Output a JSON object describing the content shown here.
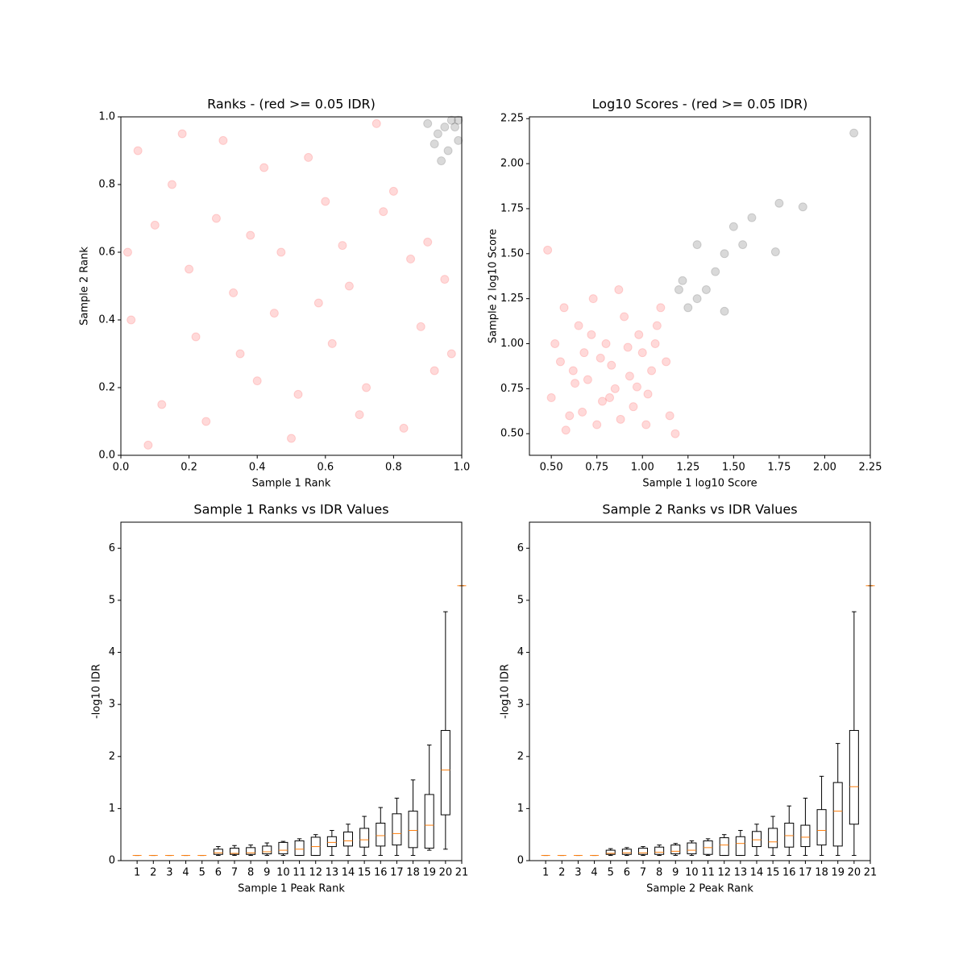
{
  "chart_data": [
    {
      "type": "scatter",
      "title": "Ranks - (red >= 0.05 IDR)",
      "x_label": "Sample 1 Rank",
      "y_label": "Sample 2 Rank",
      "xlim": [
        0,
        1
      ],
      "ylim": [
        0,
        1
      ],
      "xticks": [
        {
          "value": 0,
          "label": "0.0"
        },
        0.2,
        0.4,
        0.6,
        0.8,
        {
          "value": 1,
          "label": "1.0"
        }
      ],
      "yticks": [
        {
          "value": 0,
          "label": "0.0"
        },
        0.2,
        0.4,
        0.6,
        0.8,
        {
          "value": 1,
          "label": "1.0"
        }
      ],
      "alpha": 0.15,
      "series": [
        {
          "color": "#ff0000",
          "x": [
            0.05,
            0.12,
            0.2,
            0.28,
            0.35,
            0.42,
            0.5,
            0.58,
            0.65,
            0.72,
            0.8,
            0.88,
            0.95,
            0.03,
            0.1,
            0.18,
            0.25,
            0.33,
            0.4,
            0.47,
            0.55,
            0.62,
            0.7,
            0.77,
            0.85,
            0.92,
            0.08,
            0.15,
            0.22,
            0.3,
            0.38,
            0.45,
            0.52,
            0.6,
            0.67,
            0.75,
            0.83,
            0.9,
            0.97,
            0.02
          ],
          "y": [
            0.9,
            0.15,
            0.55,
            0.7,
            0.3,
            0.85,
            0.05,
            0.45,
            0.62,
            0.2,
            0.78,
            0.38,
            0.52,
            0.4,
            0.68,
            0.95,
            0.1,
            0.48,
            0.22,
            0.6,
            0.88,
            0.33,
            0.12,
            0.72,
            0.58,
            0.25,
            0.03,
            0.8,
            0.35,
            0.93,
            0.65,
            0.42,
            0.18,
            0.75,
            0.5,
            0.98,
            0.08,
            0.63,
            0.3,
            0.6
          ]
        },
        {
          "color": "#000000",
          "x": [
            0.95,
            0.97,
            0.93,
            0.99,
            0.9,
            0.96,
            0.98,
            0.92,
            0.99,
            0.94
          ],
          "y": [
            0.97,
            0.99,
            0.95,
            0.93,
            0.98,
            0.9,
            0.97,
            0.92,
            0.99,
            0.87
          ]
        }
      ]
    },
    {
      "type": "scatter",
      "title": "Log10 Scores - (red >= 0.05 IDR)",
      "x_label": "Sample 1 log10 Score",
      "y_label": "Sample 2 log10 Score",
      "xlim": [
        0.38,
        2.25
      ],
      "ylim": [
        0.38,
        2.26
      ],
      "xticks": [
        {
          "value": 0.5,
          "label": "0.50"
        },
        0.75,
        {
          "value": 1,
          "label": "1.00"
        },
        1.25,
        {
          "value": 1.5,
          "label": "1.50"
        },
        1.75,
        {
          "value": 2,
          "label": "2.00"
        },
        2.25
      ],
      "yticks": [
        {
          "value": 0.5,
          "label": "0.50"
        },
        0.75,
        {
          "value": 1,
          "label": "1.00"
        },
        1.25,
        {
          "value": 1.5,
          "label": "1.50"
        },
        1.75,
        {
          "value": 2,
          "label": "2.00"
        },
        2.25
      ],
      "alpha": 0.15,
      "series": [
        {
          "color": "#ff0000",
          "x": [
            0.5,
            0.55,
            0.6,
            0.65,
            0.7,
            0.75,
            0.8,
            0.85,
            0.9,
            0.95,
            1.0,
            1.05,
            1.1,
            1.15,
            0.52,
            0.58,
            0.63,
            0.68,
            0.73,
            0.78,
            0.83,
            0.88,
            0.93,
            0.98,
            1.03,
            1.08,
            1.13,
            1.18,
            0.57,
            0.67,
            0.77,
            0.87,
            0.97,
            1.07,
            0.62,
            0.72,
            0.82,
            0.92,
            1.02,
            0.48
          ],
          "y": [
            0.7,
            0.9,
            0.6,
            1.1,
            0.8,
            0.55,
            1.0,
            0.75,
            1.15,
            0.65,
            0.95,
            0.85,
            1.2,
            0.6,
            1.0,
            0.52,
            0.78,
            0.95,
            1.25,
            0.68,
            0.88,
            0.58,
            0.82,
            1.05,
            0.72,
            1.1,
            0.9,
            0.5,
            1.2,
            0.62,
            0.92,
            1.3,
            0.76,
            1.0,
            0.85,
            1.05,
            0.7,
            0.98,
            0.55,
            1.52
          ]
        },
        {
          "color": "#000000",
          "x": [
            1.2,
            1.25,
            1.3,
            1.35,
            1.4,
            1.5,
            1.75,
            1.88,
            2.16,
            1.3,
            1.45,
            1.6,
            1.73,
            1.55,
            1.45,
            1.22
          ],
          "y": [
            1.3,
            1.2,
            1.25,
            1.3,
            1.4,
            1.65,
            1.78,
            1.76,
            2.17,
            1.55,
            1.5,
            1.7,
            1.51,
            1.55,
            1.18,
            1.35
          ]
        }
      ]
    },
    {
      "type": "box",
      "title": "Sample 1 Ranks vs IDR Values",
      "x_label": "Sample 1 Peak Rank",
      "y_label": "-log10 IDR",
      "xlim": [
        0,
        21
      ],
      "ylim": [
        0,
        6.5
      ],
      "xticks": [
        1,
        2,
        3,
        4,
        5,
        6,
        7,
        8,
        9,
        10,
        11,
        12,
        13,
        14,
        15,
        16,
        17,
        18,
        19,
        20,
        21
      ],
      "yticks": [
        0,
        1,
        2,
        3,
        4,
        5,
        6
      ],
      "box_color": "#000000",
      "median_color": "#ff7f0e",
      "x": [
        1,
        2,
        3,
        4,
        5,
        6,
        7,
        8,
        9,
        10,
        11,
        12,
        13,
        14,
        15,
        16,
        17,
        18,
        19,
        20,
        21
      ],
      "whislo": [
        0.1,
        0.1,
        0.1,
        0.1,
        0.1,
        0.1,
        0.1,
        0.1,
        0.1,
        0.1,
        0.1,
        0.1,
        0.1,
        0.1,
        0.1,
        0.1,
        0.1,
        0.1,
        0.2,
        0.22,
        5.28
      ],
      "q1": [
        0.1,
        0.1,
        0.1,
        0.1,
        0.1,
        0.12,
        0.12,
        0.12,
        0.13,
        0.13,
        0.1,
        0.1,
        0.27,
        0.28,
        0.26,
        0.28,
        0.3,
        0.25,
        0.24,
        0.88,
        5.28
      ],
      "med": [
        0.1,
        0.1,
        0.1,
        0.1,
        0.1,
        0.15,
        0.14,
        0.15,
        0.17,
        0.2,
        0.22,
        0.27,
        0.35,
        0.38,
        0.4,
        0.48,
        0.52,
        0.58,
        0.68,
        1.74,
        5.28
      ],
      "q3": [
        0.1,
        0.1,
        0.1,
        0.1,
        0.1,
        0.22,
        0.24,
        0.25,
        0.28,
        0.35,
        0.38,
        0.45,
        0.46,
        0.55,
        0.62,
        0.72,
        0.9,
        0.95,
        1.27,
        2.5,
        5.28
      ],
      "whishi": [
        0.1,
        0.1,
        0.1,
        0.1,
        0.1,
        0.27,
        0.29,
        0.3,
        0.34,
        0.37,
        0.42,
        0.5,
        0.58,
        0.7,
        0.85,
        1.02,
        1.2,
        1.55,
        2.22,
        4.78,
        5.28
      ]
    },
    {
      "type": "box",
      "title": "Sample 2 Ranks vs IDR Values",
      "x_label": "Sample 2 Peak Rank",
      "y_label": "-log10 IDR",
      "xlim": [
        0,
        21
      ],
      "ylim": [
        0,
        6.5
      ],
      "xticks": [
        1,
        2,
        3,
        4,
        5,
        6,
        7,
        8,
        9,
        10,
        11,
        12,
        13,
        14,
        15,
        16,
        17,
        18,
        19,
        20,
        21
      ],
      "yticks": [
        0,
        1,
        2,
        3,
        4,
        5,
        6
      ],
      "box_color": "#000000",
      "median_color": "#ff7f0e",
      "x": [
        1,
        2,
        3,
        4,
        5,
        6,
        7,
        8,
        9,
        10,
        11,
        12,
        13,
        14,
        15,
        16,
        17,
        18,
        19,
        20,
        21
      ],
      "whislo": [
        0.1,
        0.1,
        0.1,
        0.1,
        0.1,
        0.1,
        0.1,
        0.1,
        0.1,
        0.1,
        0.1,
        0.1,
        0.1,
        0.1,
        0.1,
        0.1,
        0.1,
        0.1,
        0.1,
        0.1,
        5.28
      ],
      "q1": [
        0.1,
        0.1,
        0.1,
        0.1,
        0.12,
        0.12,
        0.12,
        0.12,
        0.13,
        0.13,
        0.12,
        0.1,
        0.1,
        0.27,
        0.25,
        0.26,
        0.27,
        0.3,
        0.28,
        0.7,
        5.28
      ],
      "med": [
        0.1,
        0.1,
        0.1,
        0.1,
        0.14,
        0.15,
        0.15,
        0.16,
        0.18,
        0.2,
        0.25,
        0.3,
        0.33,
        0.4,
        0.36,
        0.48,
        0.45,
        0.58,
        0.95,
        1.42,
        5.28
      ],
      "q3": [
        0.1,
        0.1,
        0.1,
        0.1,
        0.2,
        0.22,
        0.24,
        0.26,
        0.3,
        0.34,
        0.38,
        0.44,
        0.46,
        0.56,
        0.62,
        0.72,
        0.68,
        0.98,
        1.5,
        2.5,
        5.28
      ],
      "whishi": [
        0.1,
        0.1,
        0.1,
        0.1,
        0.23,
        0.25,
        0.27,
        0.3,
        0.33,
        0.38,
        0.42,
        0.5,
        0.58,
        0.7,
        0.85,
        1.05,
        1.2,
        1.62,
        2.25,
        4.78,
        5.28
      ]
    }
  ]
}
